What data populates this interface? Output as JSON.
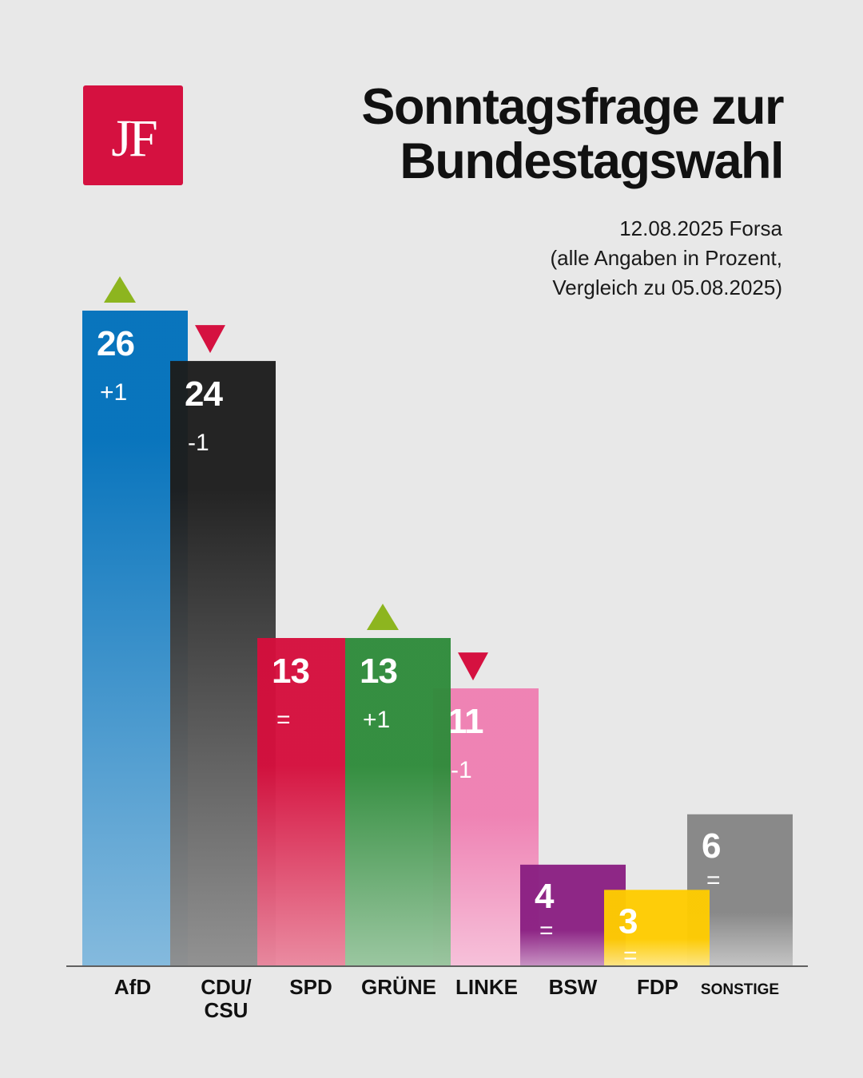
{
  "logo": {
    "text": "JF"
  },
  "title": {
    "line1": "Sonntagsfrage zur",
    "line2": "Bundestagswahl"
  },
  "subtitle": {
    "line1": "12.08.2025 Forsa",
    "line2": "(alle Angaben in Prozent,",
    "line3": "Vergleich zu 05.08.2025)"
  },
  "chart_data": {
    "type": "bar",
    "title": "Sonntagsfrage zur Bundestagswahl",
    "xlabel": "",
    "ylabel": "Prozent",
    "ylim": [
      0,
      26
    ],
    "grid": false,
    "categories": [
      "AfD",
      "CDU/CSU",
      "SPD",
      "GRÜNE",
      "LINKE",
      "BSW",
      "FDP",
      "SONSTIGE"
    ],
    "category_lines": [
      [
        "AfD"
      ],
      [
        "CDU/",
        "CSU"
      ],
      [
        "SPD"
      ],
      [
        "GRÜNE"
      ],
      [
        "LINKE"
      ],
      [
        "BSW"
      ],
      [
        "FDP"
      ],
      [
        "SONSTIGE"
      ]
    ],
    "values": [
      26,
      24,
      13,
      13,
      11,
      4,
      3,
      6
    ],
    "value_labels": [
      "26",
      "24",
      "13",
      "13",
      "11",
      "4",
      "3",
      "6"
    ],
    "changes": [
      "+1",
      "-1",
      "=",
      "+1",
      "-1",
      "=",
      "=",
      "="
    ],
    "trend": [
      "up",
      "down",
      "none",
      "up",
      "down",
      "none",
      "none",
      "none"
    ],
    "colors": [
      "#0070bb",
      "#1c1c1c",
      "#d50e3c",
      "#2e8b3a",
      "#ef7fb2",
      "#8a1f82",
      "#ffcc00",
      "#858585"
    ],
    "trend_colors": {
      "up": "#8db51f",
      "down": "#d51140"
    }
  }
}
